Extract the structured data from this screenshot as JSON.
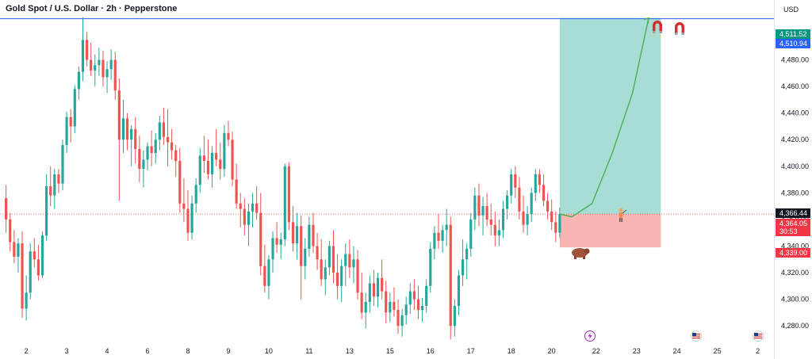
{
  "header": {
    "title": "Gold Spot / U.S. Dollar · 2h · Pepperstone",
    "currency": "USD"
  },
  "colors": {
    "up": "#26a69a",
    "down": "#ef5350",
    "target_zone": "#a8ddd6",
    "stop_zone": "#f9b4b4",
    "resistance_line": "#2962ff",
    "arrow": "#4caf50",
    "current_price_tag": "#131722",
    "target_tag": "#089981",
    "stop_tag": "#f23645",
    "resistance_tag": "#2962ff"
  },
  "icons": {
    "magnet": "magnet-icon",
    "bull": "bull-icon",
    "bear": "bear-icon",
    "lightning": "lightning-icon",
    "flag": "us-flag-icon"
  },
  "price_tags": {
    "target": "4,511.52",
    "resistance": "4,510.94",
    "current": "4,366.44",
    "entry": "4,364.05",
    "countdown": "30:53",
    "stop": "4,339.00"
  },
  "chart_data": {
    "type": "candlestick",
    "title": "Gold Spot / U.S. Dollar · 2h · Pepperstone",
    "ylim": [
      4270,
      4525
    ],
    "y_ticks": [
      "4,280.00",
      "4,300.00",
      "4,320.00",
      "4,340.00",
      "4,360.00",
      "4,380.00",
      "4,400.00",
      "4,420.00",
      "4,440.00",
      "4,460.00",
      "4,480.00",
      "4,500.00"
    ],
    "y_tick_values": [
      4280,
      4300,
      4320,
      4340,
      4360,
      4380,
      4400,
      4420,
      4440,
      4460,
      4480,
      4500
    ],
    "x_ticks": [
      "2",
      "3",
      "4",
      "6",
      "8",
      "9",
      "10",
      "11",
      "13",
      "15",
      "16",
      "17",
      "18",
      "20",
      "22",
      "23",
      "24",
      "25",
      "2"
    ],
    "x_tick_index": [
      5,
      15,
      25,
      35,
      45,
      55,
      65,
      75,
      85,
      95,
      105,
      115,
      125,
      135,
      146,
      156,
      166,
      176,
      186
    ],
    "xlim_index": [
      -1.5,
      190
    ],
    "resistance_level": 4510.94,
    "position": {
      "entry": 4364.05,
      "target": 4511.52,
      "stop": 4339.0,
      "start_index": 137,
      "end_index": 162
    },
    "forecast_path": [
      [
        137,
        4364.05
      ],
      [
        140,
        4362
      ],
      [
        145,
        4372
      ],
      [
        150,
        4410
      ],
      [
        155,
        4455
      ],
      [
        159,
        4511.52
      ]
    ],
    "candles": [
      [
        4376,
        4386,
        4350,
        4360
      ],
      [
        4360,
        4365,
        4336,
        4343
      ],
      [
        4343,
        4352,
        4327,
        4332
      ],
      [
        4332,
        4346,
        4320,
        4342
      ],
      [
        4342,
        4351,
        4286,
        4293
      ],
      [
        4293,
        4318,
        4284,
        4305
      ],
      [
        4305,
        4342,
        4300,
        4336
      ],
      [
        4336,
        4346,
        4324,
        4330
      ],
      [
        4330,
        4341,
        4314,
        4318
      ],
      [
        4318,
        4351,
        4316,
        4348
      ],
      [
        4348,
        4394,
        4344,
        4385
      ],
      [
        4385,
        4400,
        4370,
        4378
      ],
      [
        4378,
        4398,
        4368,
        4394
      ],
      [
        4394,
        4398,
        4380,
        4387
      ],
      [
        4387,
        4420,
        4382,
        4416
      ],
      [
        4416,
        4441,
        4410,
        4437
      ],
      [
        4437,
        4443,
        4418,
        4430
      ],
      [
        4430,
        4461,
        4425,
        4458
      ],
      [
        4458,
        4475,
        4450,
        4471
      ],
      [
        4471,
        4512,
        4464,
        4495
      ],
      [
        4495,
        4501,
        4475,
        4480
      ],
      [
        4480,
        4493,
        4468,
        4472
      ],
      [
        4472,
        4484,
        4460,
        4476
      ],
      [
        4476,
        4489,
        4468,
        4480
      ],
      [
        4480,
        4487,
        4460,
        4467
      ],
      [
        4467,
        4479,
        4455,
        4473
      ],
      [
        4473,
        4488,
        4465,
        4480
      ],
      [
        4480,
        4486,
        4450,
        4457
      ],
      [
        4457,
        4466,
        4374,
        4420
      ],
      [
        4420,
        4450,
        4410,
        4436
      ],
      [
        4436,
        4440,
        4412,
        4420
      ],
      [
        4420,
        4431,
        4400,
        4428
      ],
      [
        4428,
        4437,
        4402,
        4413
      ],
      [
        4413,
        4423,
        4388,
        4398
      ],
      [
        4398,
        4412,
        4384,
        4405
      ],
      [
        4405,
        4418,
        4397,
        4415
      ],
      [
        4415,
        4427,
        4400,
        4410
      ],
      [
        4410,
        4425,
        4402,
        4420
      ],
      [
        4420,
        4438,
        4412,
        4433
      ],
      [
        4433,
        4444,
        4416,
        4422
      ],
      [
        4422,
        4443,
        4400,
        4418
      ],
      [
        4418,
        4428,
        4405,
        4412
      ],
      [
        4412,
        4416,
        4392,
        4404
      ],
      [
        4404,
        4414,
        4365,
        4372
      ],
      [
        4372,
        4391,
        4358,
        4368
      ],
      [
        4368,
        4382,
        4344,
        4350
      ],
      [
        4350,
        4378,
        4345,
        4372
      ],
      [
        4372,
        4391,
        4365,
        4386
      ],
      [
        4386,
        4414,
        4380,
        4408
      ],
      [
        4408,
        4423,
        4395,
        4404
      ],
      [
        4404,
        4420,
        4390,
        4394
      ],
      [
        4394,
        4415,
        4384,
        4410
      ],
      [
        4410,
        4428,
        4400,
        4405
      ],
      [
        4405,
        4418,
        4390,
        4398
      ],
      [
        4398,
        4431,
        4392,
        4425
      ],
      [
        4425,
        4434,
        4415,
        4420
      ],
      [
        4420,
        4426,
        4385,
        4390
      ],
      [
        4390,
        4402,
        4368,
        4372
      ],
      [
        4372,
        4380,
        4354,
        4368
      ],
      [
        4368,
        4376,
        4348,
        4356
      ],
      [
        4356,
        4372,
        4340,
        4366
      ],
      [
        4366,
        4380,
        4354,
        4372
      ],
      [
        4372,
        4385,
        4360,
        4365
      ],
      [
        4365,
        4380,
        4318,
        4325
      ],
      [
        4325,
        4341,
        4305,
        4310
      ],
      [
        4310,
        4333,
        4300,
        4330
      ],
      [
        4330,
        4351,
        4320,
        4346
      ],
      [
        4346,
        4358,
        4335,
        4341
      ],
      [
        4341,
        4350,
        4330,
        4345
      ],
      [
        4345,
        4402,
        4340,
        4400
      ],
      [
        4400,
        4403,
        4352,
        4358
      ],
      [
        4358,
        4370,
        4336,
        4342
      ],
      [
        4342,
        4365,
        4330,
        4355
      ],
      [
        4355,
        4363,
        4300,
        4325
      ],
      [
        4325,
        4346,
        4315,
        4338
      ],
      [
        4338,
        4362,
        4332,
        4356
      ],
      [
        4356,
        4365,
        4335,
        4340
      ],
      [
        4340,
        4350,
        4322,
        4330
      ],
      [
        4330,
        4345,
        4310,
        4315
      ],
      [
        4315,
        4330,
        4303,
        4324
      ],
      [
        4324,
        4344,
        4318,
        4340
      ],
      [
        4340,
        4352,
        4312,
        4320
      ],
      [
        4320,
        4334,
        4300,
        4310
      ],
      [
        4310,
        4330,
        4298,
        4325
      ],
      [
        4325,
        4342,
        4310,
        4334
      ],
      [
        4334,
        4345,
        4316,
        4324
      ],
      [
        4324,
        4340,
        4312,
        4330
      ],
      [
        4330,
        4337,
        4300,
        4305
      ],
      [
        4305,
        4320,
        4285,
        4290
      ],
      [
        4290,
        4305,
        4278,
        4298
      ],
      [
        4298,
        4318,
        4290,
        4312
      ],
      [
        4312,
        4322,
        4295,
        4302
      ],
      [
        4302,
        4320,
        4294,
        4316
      ],
      [
        4316,
        4330,
        4300,
        4306
      ],
      [
        4306,
        4314,
        4282,
        4290
      ],
      [
        4290,
        4305,
        4283,
        4298
      ],
      [
        4298,
        4309,
        4287,
        4292
      ],
      [
        4292,
        4300,
        4274,
        4280
      ],
      [
        4280,
        4293,
        4272,
        4288
      ],
      [
        4288,
        4302,
        4281,
        4296
      ],
      [
        4296,
        4312,
        4289,
        4306
      ],
      [
        4306,
        4315,
        4292,
        4300
      ],
      [
        4300,
        4310,
        4285,
        4292
      ],
      [
        4292,
        4301,
        4283,
        4295
      ],
      [
        4295,
        4315,
        4290,
        4310
      ],
      [
        4310,
        4343,
        4305,
        4338
      ],
      [
        4338,
        4355,
        4330,
        4350
      ],
      [
        4350,
        4364,
        4338,
        4344
      ],
      [
        4344,
        4356,
        4335,
        4352
      ],
      [
        4352,
        4368,
        4340,
        4356
      ],
      [
        4356,
        4362,
        4270,
        4280
      ],
      [
        4280,
        4300,
        4272,
        4295
      ],
      [
        4295,
        4322,
        4288,
        4318
      ],
      [
        4318,
        4345,
        4310,
        4330
      ],
      [
        4330,
        4342,
        4315,
        4338
      ],
      [
        4338,
        4365,
        4332,
        4360
      ],
      [
        4360,
        4384,
        4352,
        4378
      ],
      [
        4378,
        4387,
        4355,
        4363
      ],
      [
        4363,
        4377,
        4348,
        4370
      ],
      [
        4370,
        4380,
        4355,
        4360
      ],
      [
        4360,
        4372,
        4348,
        4356
      ],
      [
        4356,
        4366,
        4340,
        4348
      ],
      [
        4348,
        4360,
        4340,
        4352
      ],
      [
        4352,
        4374,
        4346,
        4368
      ],
      [
        4368,
        4382,
        4360,
        4378
      ],
      [
        4378,
        4398,
        4372,
        4394
      ],
      [
        4394,
        4400,
        4376,
        4384
      ],
      [
        4384,
        4392,
        4360,
        4366
      ],
      [
        4366,
        4378,
        4350,
        4356
      ],
      [
        4356,
        4370,
        4348,
        4364
      ],
      [
        4364,
        4384,
        4358,
        4380
      ],
      [
        4380,
        4398,
        4374,
        4394
      ],
      [
        4394,
        4398,
        4380,
        4386
      ],
      [
        4386,
        4394,
        4370,
        4374
      ],
      [
        4374,
        4380,
        4360,
        4366
      ],
      [
        4366,
        4375,
        4352,
        4358
      ],
      [
        4358,
        4366,
        4343,
        4350
      ],
      [
        4350,
        4369,
        4346,
        4364
      ]
    ]
  }
}
